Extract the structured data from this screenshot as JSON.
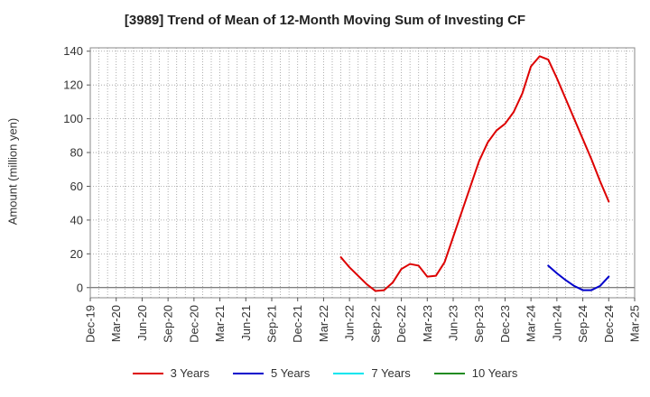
{
  "chart_data": {
    "type": "line",
    "title": "[3989]  Trend of Mean of 12-Month Moving Sum of Investing CF",
    "ylabel": "Amount (million yen)",
    "xlabel": "",
    "ylim": [
      -6,
      142
    ],
    "yticks": [
      0,
      20,
      40,
      60,
      80,
      100,
      120,
      140
    ],
    "xticks": [
      "Dec-19",
      "Mar-20",
      "Jun-20",
      "Sep-20",
      "Dec-20",
      "Mar-21",
      "Jun-21",
      "Sep-21",
      "Dec-21",
      "Mar-22",
      "Jun-22",
      "Sep-22",
      "Dec-22",
      "Mar-23",
      "Jun-23",
      "Sep-23",
      "Dec-23",
      "Mar-24",
      "Jun-24",
      "Sep-24",
      "Dec-24",
      "Mar-25"
    ],
    "grid": true,
    "legend_position": "bottom",
    "series": [
      {
        "name": "3 Years",
        "color": "#dd0000",
        "points": [
          [
            "May-22",
            18
          ],
          [
            "Jun-22",
            12
          ],
          [
            "Jul-22",
            7
          ],
          [
            "Aug-22",
            2
          ],
          [
            "Sep-22",
            -2
          ],
          [
            "Oct-22",
            -1.5
          ],
          [
            "Nov-22",
            3
          ],
          [
            "Dec-22",
            11
          ],
          [
            "Jan-23",
            14
          ],
          [
            "Feb-23",
            13
          ],
          [
            "Mar-23",
            6.5
          ],
          [
            "Apr-23",
            7
          ],
          [
            "May-23",
            15
          ],
          [
            "Jun-23",
            30
          ],
          [
            "Jul-23",
            45
          ],
          [
            "Aug-23",
            60
          ],
          [
            "Sep-23",
            75
          ],
          [
            "Oct-23",
            86
          ],
          [
            "Nov-23",
            93
          ],
          [
            "Dec-23",
            97
          ],
          [
            "Jan-24",
            104
          ],
          [
            "Feb-24",
            115
          ],
          [
            "Mar-24",
            131
          ],
          [
            "Apr-24",
            137
          ],
          [
            "May-24",
            135
          ],
          [
            "Jun-24",
            124
          ],
          [
            "Jul-24",
            112
          ],
          [
            "Aug-24",
            100
          ],
          [
            "Sep-24",
            88
          ],
          [
            "Oct-24",
            76
          ],
          [
            "Nov-24",
            63
          ],
          [
            "Dec-24",
            51
          ]
        ]
      },
      {
        "name": "5 Years",
        "color": "#0000cc",
        "points": [
          [
            "May-24",
            13
          ],
          [
            "Jun-24",
            8.5
          ],
          [
            "Jul-24",
            4.5
          ],
          [
            "Aug-24",
            1
          ],
          [
            "Sep-24",
            -1.5
          ],
          [
            "Oct-24",
            -1.5
          ],
          [
            "Nov-24",
            1
          ],
          [
            "Dec-24",
            6.5
          ]
        ]
      },
      {
        "name": "7 Years",
        "color": "#00e5ee",
        "points": []
      },
      {
        "name": "10 Years",
        "color": "#228b22",
        "points": []
      }
    ]
  }
}
